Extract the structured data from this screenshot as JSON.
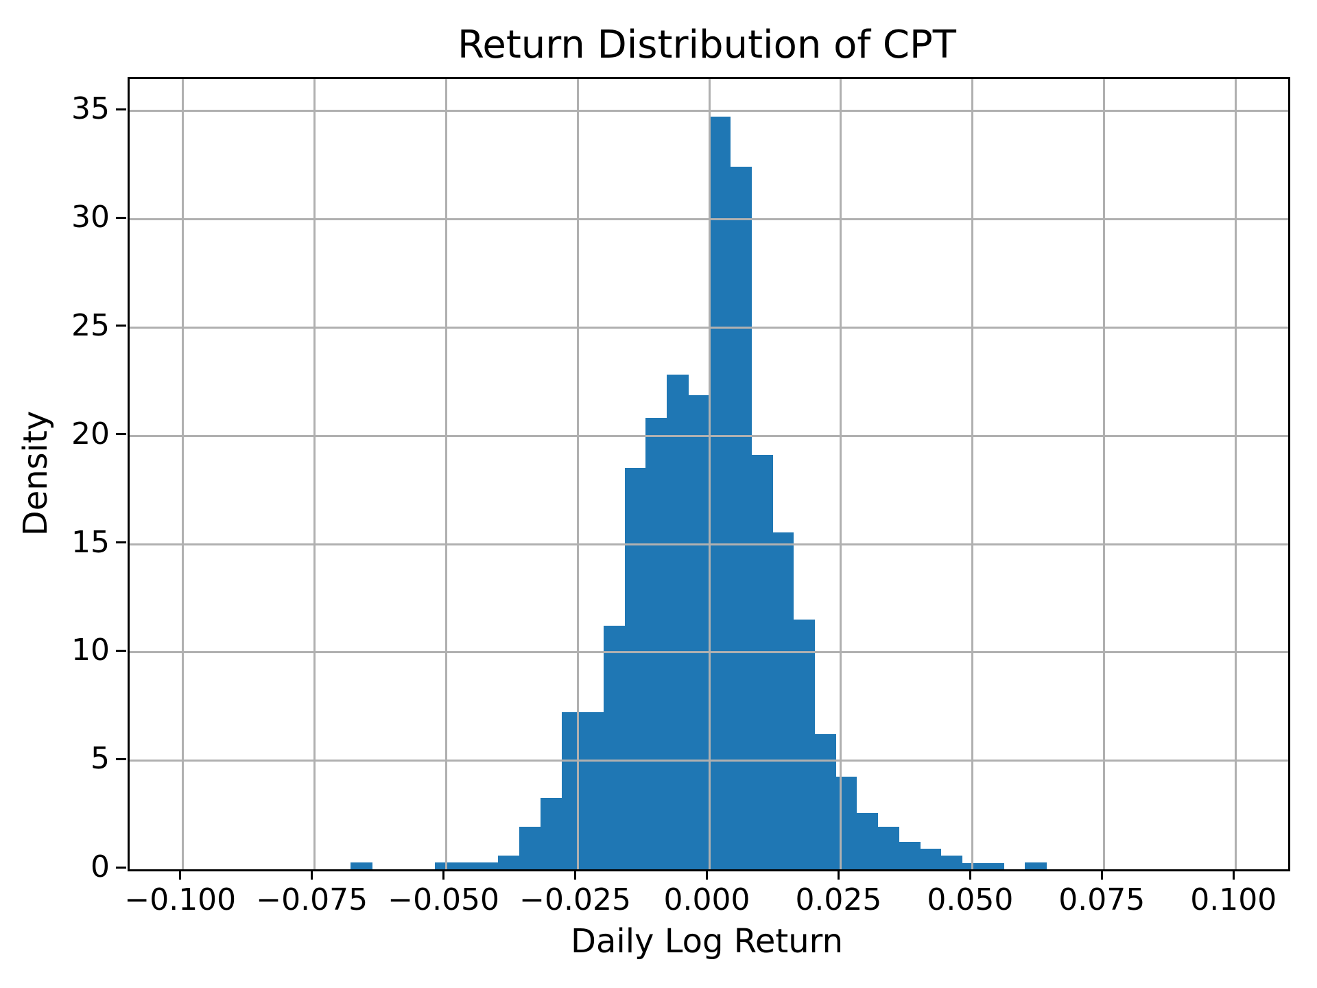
{
  "chart_data": {
    "type": "histogram-bar",
    "title": "Return Distribution of CPT",
    "xlabel": "Daily Log Return",
    "ylabel": "Density",
    "xlim": [
      -0.11,
      0.11
    ],
    "ylim": [
      0,
      36.5
    ],
    "grid": true,
    "legend": "none",
    "bar_color": "#1f77b4",
    "grid_color": "#b0b0b0",
    "spine_color": "#000000",
    "bin_start": -0.068,
    "bin_width": 0.004,
    "n_bins": 33,
    "densities": [
      0.32,
      0,
      0,
      0,
      0.32,
      0.32,
      0.32,
      0.64,
      1.98,
      3.3,
      7.25,
      7.25,
      11.24,
      18.55,
      20.85,
      22.84,
      21.89,
      34.76,
      32.45,
      19.15,
      15.55,
      11.53,
      6.24,
      4.29,
      2.6,
      1.95,
      1.28,
      0.95,
      0.62,
      0.3,
      0.3,
      0,
      0.32
    ],
    "xticks": [
      {
        "value": -0.1,
        "label": "−0.100"
      },
      {
        "value": -0.075,
        "label": "−0.075"
      },
      {
        "value": -0.05,
        "label": "−0.050"
      },
      {
        "value": -0.025,
        "label": "−0.025"
      },
      {
        "value": 0.0,
        "label": "0.000"
      },
      {
        "value": 0.025,
        "label": "0.025"
      },
      {
        "value": 0.05,
        "label": "0.050"
      },
      {
        "value": 0.075,
        "label": "0.075"
      },
      {
        "value": 0.1,
        "label": "0.100"
      }
    ],
    "yticks": [
      {
        "value": 0,
        "label": "0"
      },
      {
        "value": 5,
        "label": "5"
      },
      {
        "value": 10,
        "label": "10"
      },
      {
        "value": 15,
        "label": "15"
      },
      {
        "value": 20,
        "label": "20"
      },
      {
        "value": 25,
        "label": "25"
      },
      {
        "value": 30,
        "label": "30"
      },
      {
        "value": 35,
        "label": "35"
      }
    ]
  }
}
